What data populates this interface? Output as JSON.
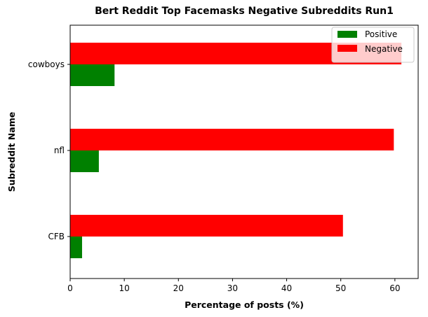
{
  "chart_data": {
    "type": "bar",
    "orientation": "horizontal",
    "title": "Bert Reddit Top Facemasks Negative Subreddits Run1",
    "xlabel": "Percentage of posts (%)",
    "ylabel": "Subreddit Name",
    "categories": [
      "cowboys",
      "nfl",
      "CFB"
    ],
    "series": [
      {
        "name": "Positive",
        "color": "#008000",
        "values": [
          8.2,
          5.3,
          2.2
        ]
      },
      {
        "name": "Negative",
        "color": "#ff0000",
        "values": [
          61.2,
          59.8,
          50.4
        ]
      }
    ],
    "xlim": [
      0,
      64.3
    ],
    "xticks": [
      0,
      10,
      20,
      30,
      40,
      50,
      60
    ],
    "grid": false,
    "legend_position": "top-right"
  }
}
